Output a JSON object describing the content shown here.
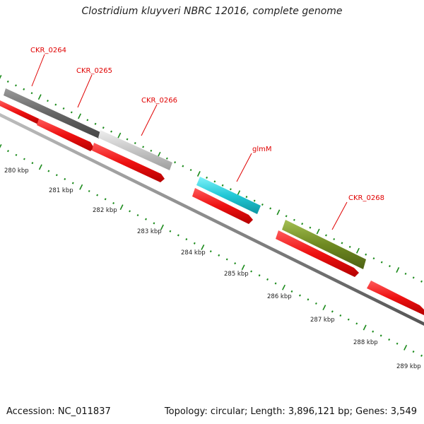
{
  "title": "Clostridium kluyveri NBRC 12016, complete genome",
  "footer": {
    "accession": "Accession: NC_011837",
    "summary": "Topology: circular; Length: 3,896,121 bp; Genes: 3,549"
  },
  "colors": {
    "cds_red": "#ee1111",
    "backbone": "#8a8a8a",
    "gc_ticks": "#1a8a1a",
    "gene_label": "#e00000",
    "gene_dark_gray": "#6a6a6a",
    "gene_light_gray": "#c8c8c8",
    "gene_cyan": "#22c8d6",
    "gene_olive": "#6f8a22"
  },
  "genes": [
    {
      "name": "CKR_0264",
      "color": "gene_dark_gray"
    },
    {
      "name": "CKR_0265",
      "color": "gene_light_gray"
    },
    {
      "name": "CKR_0266",
      "color": "gene_light_gray"
    },
    {
      "name": "glmM",
      "color": "gene_cyan"
    },
    {
      "name": "CKR_0268",
      "color": "gene_olive"
    }
  ],
  "scale_ticks": [
    "280 kbp",
    "281 kbp",
    "282 kbp",
    "283 kbp",
    "284 kbp",
    "285 kbp",
    "286 kbp",
    "287 kbp",
    "288 kbp",
    "289 kbp"
  ]
}
